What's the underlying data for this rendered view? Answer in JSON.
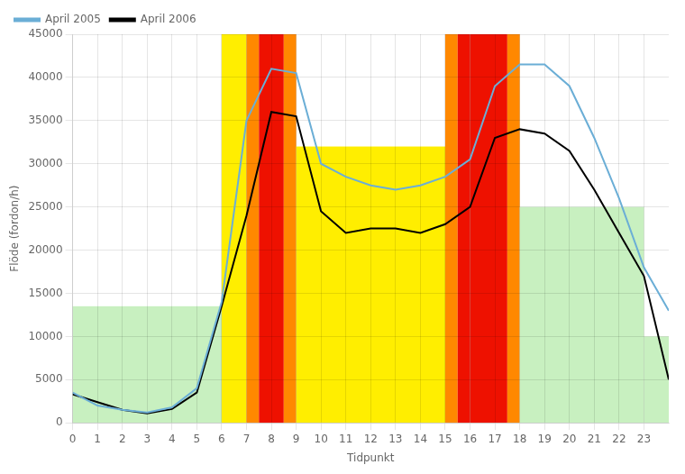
{
  "chart_data": {
    "type": "line",
    "xlabel": "Tidpunkt",
    "ylabel": "Flöde (fordon/h)",
    "x": [
      0,
      1,
      2,
      3,
      4,
      5,
      6,
      7,
      8,
      9,
      10,
      11,
      12,
      13,
      14,
      15,
      16,
      17,
      18,
      19,
      20,
      21,
      22,
      23,
      24
    ],
    "xlim": [
      0,
      24
    ],
    "ylim": [
      0,
      45000
    ],
    "xticks": [
      0,
      1,
      2,
      3,
      4,
      5,
      6,
      7,
      8,
      9,
      10,
      11,
      12,
      13,
      14,
      15,
      16,
      17,
      18,
      19,
      20,
      21,
      22,
      23
    ],
    "yticks": [
      0,
      5000,
      10000,
      15000,
      20000,
      25000,
      30000,
      35000,
      40000,
      45000
    ],
    "grid": true,
    "legend": "upper left",
    "series": [
      {
        "name": "April 2005",
        "color": "#6baed6",
        "values": [
          3500,
          2000,
          1500,
          1200,
          1800,
          4000,
          14000,
          35000,
          41000,
          40500,
          30000,
          28500,
          27500,
          27000,
          27500,
          28500,
          30500,
          39000,
          41500,
          41500,
          39000,
          33000,
          26000,
          18000,
          13000
        ]
      },
      {
        "name": "April 2006",
        "color": "#000000",
        "values": [
          3300,
          2400,
          1500,
          1100,
          1600,
          3500,
          13500,
          24000,
          36000,
          35500,
          24500,
          22000,
          22500,
          22500,
          22000,
          23000,
          25000,
          33000,
          34000,
          33500,
          31500,
          27000,
          22000,
          17000,
          5000
        ]
      }
    ],
    "zones": [
      {
        "xmin": 0,
        "xmax": 6,
        "color": "#c8f0c0",
        "height": 13500
      },
      {
        "xmin": 6,
        "xmax": 7,
        "color": "#ffee00",
        "height": 45000
      },
      {
        "xmin": 7,
        "xmax": 7.5,
        "color": "#ff8800",
        "height": 45000
      },
      {
        "xmin": 7.5,
        "xmax": 8.5,
        "color": "#ee1100",
        "height": 45000
      },
      {
        "xmin": 8.5,
        "xmax": 9,
        "color": "#ff8800",
        "height": 45000
      },
      {
        "xmin": 9,
        "xmax": 15,
        "color": "#ffee00",
        "height": 32000
      },
      {
        "xmin": 15,
        "xmax": 15.5,
        "color": "#ff8800",
        "height": 45000
      },
      {
        "xmin": 15.5,
        "xmax": 16,
        "color": "#ee1100",
        "height": 45000
      },
      {
        "xmin": 16,
        "xmax": 17.5,
        "color": "#ee1100",
        "height": 45000
      },
      {
        "xmin": 17.5,
        "xmax": 18,
        "color": "#ff8800",
        "height": 45000
      },
      {
        "xmin": 18,
        "xmax": 23,
        "color": "#c8f0c0",
        "height": 25000
      },
      {
        "xmin": 23,
        "xmax": 24,
        "color": "#c8f0c0",
        "height": 10000
      }
    ]
  }
}
